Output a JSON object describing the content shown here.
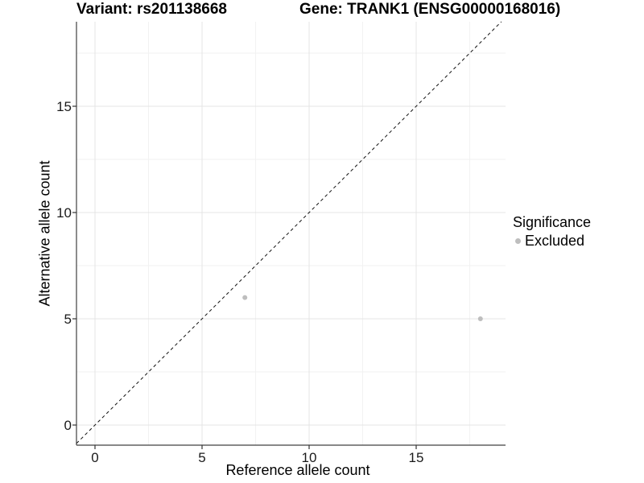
{
  "chart_data": {
    "type": "scatter",
    "title_left": "Variant: rs201138668",
    "title_right": "Gene: TRANK1 (ENSG00000168016)",
    "xlabel": "Reference allele count",
    "ylabel": "Alternative allele count",
    "xlim": [
      -0.9,
      19.2
    ],
    "ylim": [
      -0.95,
      19.0
    ],
    "x_major_ticks": [
      0,
      5,
      10,
      15
    ],
    "y_major_ticks": [
      0,
      5,
      10,
      15
    ],
    "x_minor_gridlines": [
      2.5,
      7.5,
      12.5,
      17.5
    ],
    "y_minor_gridlines": [
      2.5,
      7.5,
      12.5,
      17.5
    ],
    "grid": "major+minor",
    "identity_line": {
      "style": "dashed",
      "slope": 1,
      "intercept": 0
    },
    "series": [
      {
        "name": "Excluded",
        "color": "#bebebe",
        "point_radius": 3,
        "points": [
          {
            "x": 7,
            "y": 6
          },
          {
            "x": 18,
            "y": 5
          }
        ]
      }
    ],
    "legend": {
      "title": "Significance",
      "position": "right",
      "items": [
        {
          "label": "Excluded",
          "color": "#bebebe",
          "marker": "circle"
        }
      ]
    }
  },
  "colors": {
    "background": "#ffffff",
    "grid_major": "#e4e4e4",
    "grid_minor": "#f2f2f2",
    "axis_line": "#404040",
    "tick_mark": "#333333",
    "tick_label": "#1a1a1a",
    "identity_line": "#111111",
    "text": "#000000"
  }
}
